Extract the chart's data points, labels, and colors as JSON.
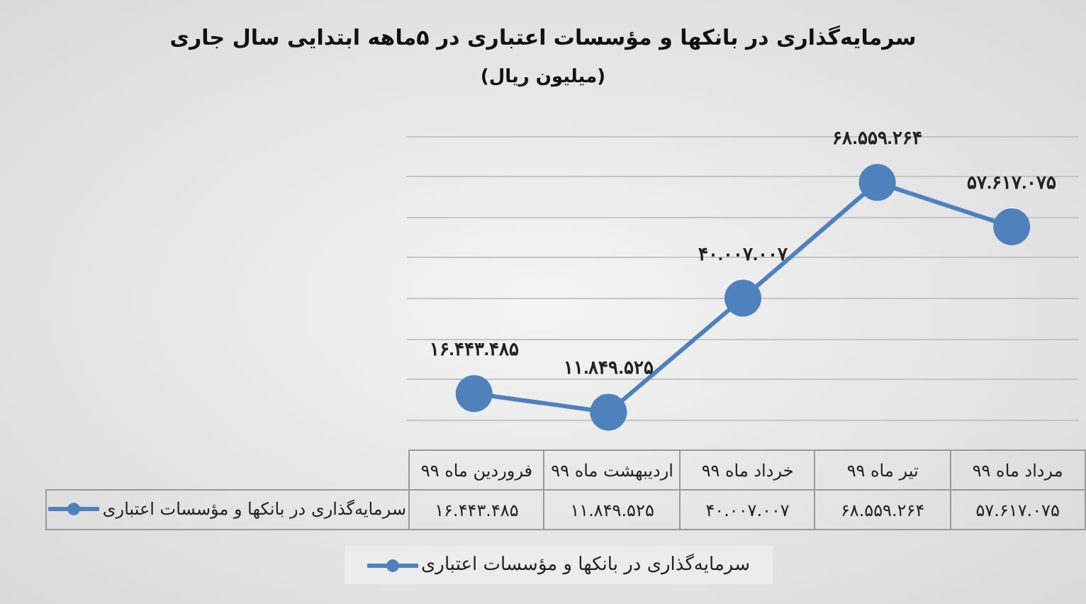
{
  "chart_data": {
    "type": "line",
    "title": "سرمایه‌گذاری در بانکها و مؤسسات اعتباری در ۵ماهه ابتدایی سال جاری",
    "subtitle": "(میلیون ریال)",
    "categories": [
      "فروردین ماه ۹۹",
      "اردیبهشت ماه ۹۹",
      "خرداد ماه ۹۹",
      "تیر ماه ۹۹",
      "مرداد ماه ۹۹"
    ],
    "series": [
      {
        "name": "سرمایه‌گذاری در بانکها و مؤسسات اعتباری",
        "color": "#4f81bd",
        "values": [
          16443485,
          11849525,
          40007007,
          68559264,
          57617075
        ],
        "value_labels": [
          "۱۶.۴۴۳.۴۸۵",
          "۱۱.۸۴۹.۵۲۵",
          "۴۰.۰۰۷.۰۰۷",
          "۶۸.۵۵۹.۲۶۴",
          "۵۷.۶۱۷.۰۷۵"
        ]
      }
    ],
    "ylim": [
      10000000,
      80000000
    ],
    "yticks": [
      {
        "value": 10000000,
        "label": null
      },
      {
        "value": 20000000,
        "label": null
      },
      {
        "value": 30000000,
        "label": null
      },
      {
        "value": 40000000,
        "label": null
      },
      {
        "value": 50000000,
        "label": null
      },
      {
        "value": 60000000,
        "label": null
      },
      {
        "value": 70000000,
        "label": null
      },
      {
        "value": 80000000,
        "label": null
      }
    ],
    "tick_labels": "x",
    "grid": "y",
    "legend": "bottom",
    "marker": "circle",
    "line_style": "solid"
  }
}
